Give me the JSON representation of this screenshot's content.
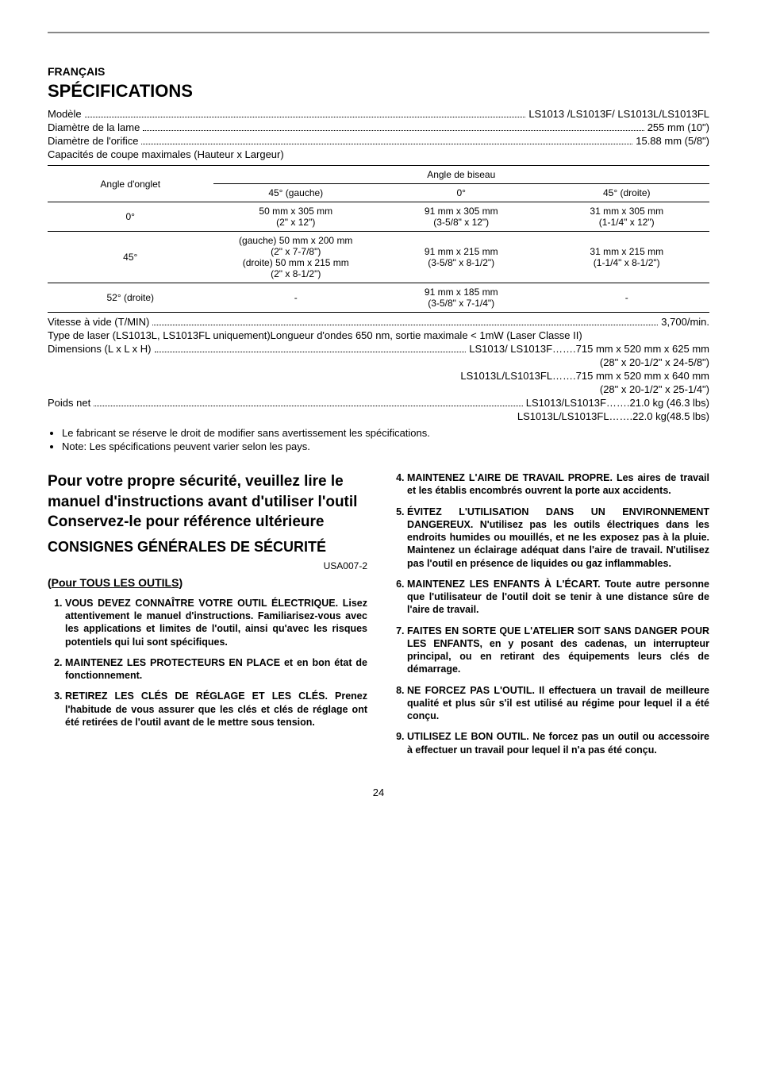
{
  "header": {
    "language": "FRANÇAIS",
    "title": "SPÉCIFICATIONS"
  },
  "specs_top": [
    {
      "label": "Modèle",
      "value": "LS1013 /LS1013F/ LS1013L/LS1013FL"
    },
    {
      "label": "Diamètre de la lame",
      "value": "255 mm (10\")"
    },
    {
      "label": "Diamètre de l'orifice",
      "value": "15.88 mm (5/8\")"
    }
  ],
  "cap_label": "Capacités de coupe maximales (Hauteur x Largeur)",
  "table": {
    "miter_header": "Angle d'onglet",
    "bevel_header": "Angle de biseau",
    "bevel_cols": [
      "45° (gauche)",
      "0°",
      "45° (droite)"
    ],
    "rows": [
      {
        "miter": "0°",
        "c1": "50 mm x 305 mm\n(2\" x 12\")",
        "c2": "91 mm x 305 mm\n(3-5/8\" x 12\")",
        "c3": "31 mm x 305 mm\n(1-1/4\" x 12\")"
      },
      {
        "miter": "45°",
        "c1": "(gauche) 50 mm x 200 mm\n(2\" x 7-7/8\")\n(droite) 50 mm x 215 mm\n(2\" x 8-1/2\")",
        "c2": "91 mm x 215 mm\n(3-5/8\" x 8-1/2\")",
        "c3": "31 mm x 215 mm\n(1-1/4\" x 8-1/2\")"
      },
      {
        "miter": "52° (droite)",
        "c1": "-",
        "c2": "91 mm x 185 mm\n(3-5/8\" x 7-1/4\")",
        "c3": "-"
      }
    ]
  },
  "specs_bottom": {
    "speed": {
      "label": "Vitesse à vide (T/MIN)",
      "value": "3,700/min."
    },
    "laser": "Type de laser  (LS1013L, LS1013FL uniquement)Longueur d'ondes 650 nm, sortie maximale < 1mW (Laser Classe II)",
    "dims": {
      "label": "Dimensions (L x L x H)",
      "value": "LS1013/ LS1013F…….715 mm x 520 mm x 625 mm"
    },
    "dims_extra": [
      "(28\" x 20-1/2\" x 24-5/8\")",
      "LS1013L/LS1013FL…….715 mm x 520 mm x 640 mm",
      "(28\" x 20-1/2\" x 25-1/4\")"
    ],
    "weight": {
      "label": "Poids net",
      "value": "LS1013/LS1013F…….21.0 kg (46.3 lbs)"
    },
    "weight_extra": "LS1013L/LS1013FL…….22.0 kg(48.5 lbs)"
  },
  "notes": [
    "Le fabricant se réserve le droit de modifier sans avertissement les spécifications.",
    "Note: Les spécifications peuvent varier selon les pays."
  ],
  "safety": {
    "intro": "Pour votre propre sécurité, veuillez lire le manuel d'instructions avant d'utiliser l'outil Conservez-le pour référence ultérieure",
    "title": "CONSIGNES GÉNÉRALES DE SÉCURITÉ",
    "code": "USA007-2",
    "sub": "(Pour TOUS LES OUTILS)",
    "left": [
      "VOUS DEVEZ CONNAÎTRE VOTRE OUTIL ÉLECTRIQUE. Lisez attentivement le manuel d'instructions. Familiarisez-vous avec les applications et limites de l'outil, ainsi qu'avec les risques potentiels qui lui sont spécifiques.",
      "MAINTENEZ LES PROTECTEURS EN PLACE et en bon état de fonctionnement.",
      "RETIREZ LES CLÉS DE RÉGLAGE ET LES CLÉS. Prenez l'habitude de vous assurer que les clés et clés de réglage ont été retirées de l'outil avant de le mettre sous tension."
    ],
    "right": [
      "MAINTENEZ L'AIRE DE TRAVAIL PROPRE. Les aires de travail et les établis encombrés ouvrent la porte aux accidents.",
      "ÉVITEZ L'UTILISATION DANS UN ENVIRONNEMENT DANGEREUX. N'utilisez pas les outils électriques dans les endroits humides ou mouillés, et ne les exposez pas à la pluie. Maintenez un éclairage adéquat dans l'aire de travail. N'utilisez pas l'outil en présence de liquides ou gaz inflammables.",
      "MAINTENEZ LES ENFANTS À L'ÉCART. Toute autre personne que l'utilisateur de l'outil doit se tenir à une distance sûre de l'aire de travail.",
      "FAITES EN SORTE QUE L'ATELIER SOIT SANS DANGER POUR LES ENFANTS, en y posant des cadenas, un interrupteur principal, ou en retirant des équipements leurs clés de démarrage.",
      "NE FORCEZ PAS L'OUTIL. Il effectuera un travail de meilleure qualité et plus sûr s'il est utilisé au régime pour lequel il a été conçu.",
      "UTILISEZ LE BON OUTIL. Ne forcez pas un outil ou accessoire à effectuer un travail pour lequel il n'a pas été conçu."
    ]
  },
  "page": "24"
}
